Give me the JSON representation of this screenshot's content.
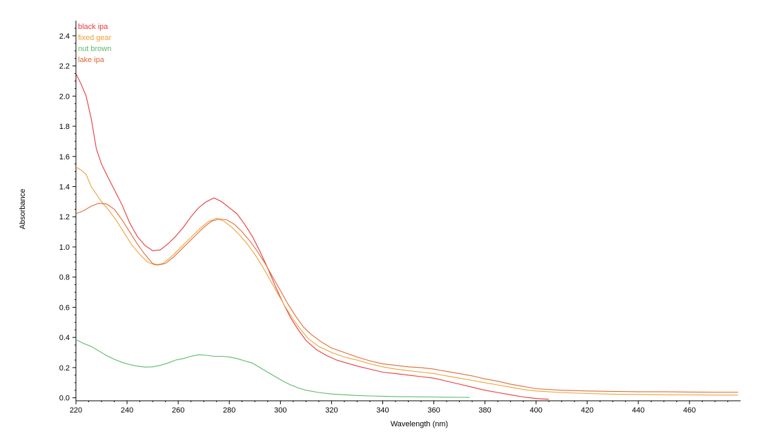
{
  "chart_data": {
    "type": "line",
    "title": "",
    "xlabel": "Wavelength (nm)",
    "ylabel": "Absorbance",
    "xlim": [
      220,
      480
    ],
    "ylim": [
      -0.02,
      2.5
    ],
    "x_ticks": [
      220,
      240,
      260,
      280,
      300,
      320,
      340,
      360,
      380,
      400,
      420,
      440,
      460
    ],
    "y_ticks": [
      0.0,
      0.2,
      0.4,
      0.6,
      0.8,
      1.0,
      1.2,
      1.4,
      1.6,
      1.8,
      2.0,
      2.2,
      2.4
    ],
    "x_tick_labels": [
      "220",
      "240",
      "260",
      "280",
      "300",
      "320",
      "340",
      "360",
      "380",
      "400",
      "420",
      "440",
      "460"
    ],
    "y_tick_labels": [
      "0.0",
      "0.2",
      "0.4",
      "0.6",
      "0.8",
      "1.0",
      "1.2",
      "1.4",
      "1.6",
      "1.8",
      "2.0",
      "2.2",
      "2.4"
    ],
    "grid": false,
    "legend_position": "top-left",
    "series": [
      {
        "name": "black ipa",
        "color": "#e8383a",
        "points": [
          [
            220,
            2.15
          ],
          [
            222,
            2.08
          ],
          [
            224,
            2.0
          ],
          [
            226,
            1.85
          ],
          [
            228,
            1.65
          ],
          [
            230,
            1.55
          ],
          [
            232,
            1.48
          ],
          [
            235,
            1.38
          ],
          [
            238,
            1.28
          ],
          [
            241,
            1.16
          ],
          [
            244,
            1.07
          ],
          [
            247,
            1.01
          ],
          [
            250,
            0.975
          ],
          [
            253,
            0.98
          ],
          [
            256,
            1.02
          ],
          [
            259,
            1.07
          ],
          [
            262,
            1.13
          ],
          [
            265,
            1.2
          ],
          [
            268,
            1.26
          ],
          [
            271,
            1.3
          ],
          [
            274,
            1.325
          ],
          [
            277,
            1.3
          ],
          [
            280,
            1.26
          ],
          [
            283,
            1.22
          ],
          [
            286,
            1.15
          ],
          [
            289,
            1.07
          ],
          [
            292,
            0.97
          ],
          [
            295,
            0.86
          ],
          [
            298,
            0.74
          ],
          [
            301,
            0.63
          ],
          [
            304,
            0.53
          ],
          [
            307,
            0.45
          ],
          [
            310,
            0.38
          ],
          [
            314,
            0.32
          ],
          [
            318,
            0.28
          ],
          [
            322,
            0.25
          ],
          [
            326,
            0.23
          ],
          [
            330,
            0.21
          ],
          [
            335,
            0.19
          ],
          [
            340,
            0.17
          ],
          [
            345,
            0.16
          ],
          [
            350,
            0.15
          ],
          [
            355,
            0.14
          ],
          [
            360,
            0.13
          ],
          [
            365,
            0.11
          ],
          [
            370,
            0.09
          ],
          [
            375,
            0.07
          ],
          [
            380,
            0.05
          ],
          [
            385,
            0.035
          ],
          [
            390,
            0.02
          ],
          [
            395,
            0.005
          ],
          [
            400,
            -0.005
          ],
          [
            405,
            -0.01
          ]
        ]
      },
      {
        "name": "fixed gear",
        "color": "#f0a035",
        "points": [
          [
            220,
            1.53
          ],
          [
            222,
            1.51
          ],
          [
            224,
            1.48
          ],
          [
            226,
            1.4
          ],
          [
            228,
            1.35
          ],
          [
            230,
            1.3
          ],
          [
            233,
            1.24
          ],
          [
            236,
            1.17
          ],
          [
            239,
            1.09
          ],
          [
            242,
            1.01
          ],
          [
            245,
            0.95
          ],
          [
            248,
            0.9
          ],
          [
            251,
            0.88
          ],
          [
            254,
            0.89
          ],
          [
            257,
            0.93
          ],
          [
            260,
            0.98
          ],
          [
            263,
            1.03
          ],
          [
            266,
            1.08
          ],
          [
            269,
            1.13
          ],
          [
            272,
            1.17
          ],
          [
            275,
            1.19
          ],
          [
            278,
            1.17
          ],
          [
            281,
            1.13
          ],
          [
            284,
            1.08
          ],
          [
            287,
            1.02
          ],
          [
            290,
            0.95
          ],
          [
            293,
            0.87
          ],
          [
            296,
            0.78
          ],
          [
            299,
            0.69
          ],
          [
            302,
            0.6
          ],
          [
            305,
            0.52
          ],
          [
            308,
            0.45
          ],
          [
            311,
            0.39
          ],
          [
            315,
            0.34
          ],
          [
            320,
            0.3
          ],
          [
            325,
            0.27
          ],
          [
            330,
            0.25
          ],
          [
            335,
            0.225
          ],
          [
            340,
            0.205
          ],
          [
            345,
            0.19
          ],
          [
            350,
            0.18
          ],
          [
            355,
            0.17
          ],
          [
            360,
            0.16
          ],
          [
            365,
            0.145
          ],
          [
            370,
            0.13
          ],
          [
            375,
            0.115
          ],
          [
            380,
            0.1
          ],
          [
            385,
            0.085
          ],
          [
            390,
            0.07
          ],
          [
            395,
            0.055
          ],
          [
            400,
            0.045
          ],
          [
            410,
            0.035
          ],
          [
            420,
            0.028
          ],
          [
            430,
            0.024
          ],
          [
            440,
            0.022
          ],
          [
            450,
            0.02
          ],
          [
            460,
            0.019
          ],
          [
            470,
            0.018
          ],
          [
            479,
            0.018
          ]
        ]
      },
      {
        "name": "nut brown",
        "color": "#5cb86a",
        "points": [
          [
            220,
            0.385
          ],
          [
            223,
            0.36
          ],
          [
            226,
            0.34
          ],
          [
            229,
            0.31
          ],
          [
            232,
            0.28
          ],
          [
            235,
            0.255
          ],
          [
            238,
            0.235
          ],
          [
            241,
            0.22
          ],
          [
            244,
            0.21
          ],
          [
            247,
            0.203
          ],
          [
            250,
            0.205
          ],
          [
            253,
            0.215
          ],
          [
            256,
            0.23
          ],
          [
            259,
            0.25
          ],
          [
            262,
            0.26
          ],
          [
            265,
            0.275
          ],
          [
            268,
            0.285
          ],
          [
            271,
            0.282
          ],
          [
            274,
            0.275
          ],
          [
            277,
            0.275
          ],
          [
            280,
            0.27
          ],
          [
            283,
            0.26
          ],
          [
            286,
            0.245
          ],
          [
            289,
            0.23
          ],
          [
            292,
            0.2
          ],
          [
            295,
            0.17
          ],
          [
            298,
            0.14
          ],
          [
            301,
            0.11
          ],
          [
            304,
            0.085
          ],
          [
            307,
            0.065
          ],
          [
            310,
            0.05
          ],
          [
            315,
            0.035
          ],
          [
            320,
            0.025
          ],
          [
            325,
            0.02
          ],
          [
            330,
            0.015
          ],
          [
            335,
            0.012
          ],
          [
            340,
            0.01
          ],
          [
            345,
            0.008
          ],
          [
            350,
            0.007
          ],
          [
            355,
            0.006
          ],
          [
            360,
            0.005
          ],
          [
            365,
            0.004
          ],
          [
            370,
            0.003
          ],
          [
            374,
            0.002
          ]
        ]
      },
      {
        "name": "lake ipa",
        "color": "#e06a35",
        "points": [
          [
            220,
            1.22
          ],
          [
            223,
            1.24
          ],
          [
            226,
            1.27
          ],
          [
            229,
            1.29
          ],
          [
            232,
            1.285
          ],
          [
            235,
            1.25
          ],
          [
            238,
            1.18
          ],
          [
            241,
            1.1
          ],
          [
            244,
            1.02
          ],
          [
            247,
            0.95
          ],
          [
            250,
            0.89
          ],
          [
            252,
            0.88
          ],
          [
            255,
            0.89
          ],
          [
            258,
            0.93
          ],
          [
            261,
            0.98
          ],
          [
            264,
            1.03
          ],
          [
            267,
            1.08
          ],
          [
            270,
            1.13
          ],
          [
            273,
            1.17
          ],
          [
            276,
            1.185
          ],
          [
            279,
            1.18
          ],
          [
            282,
            1.15
          ],
          [
            285,
            1.1
          ],
          [
            288,
            1.04
          ],
          [
            291,
            0.97
          ],
          [
            294,
            0.89
          ],
          [
            297,
            0.8
          ],
          [
            300,
            0.71
          ],
          [
            303,
            0.62
          ],
          [
            306,
            0.54
          ],
          [
            309,
            0.47
          ],
          [
            312,
            0.42
          ],
          [
            316,
            0.37
          ],
          [
            320,
            0.33
          ],
          [
            325,
            0.3
          ],
          [
            330,
            0.27
          ],
          [
            335,
            0.245
          ],
          [
            340,
            0.225
          ],
          [
            345,
            0.215
          ],
          [
            350,
            0.205
          ],
          [
            355,
            0.2
          ],
          [
            360,
            0.19
          ],
          [
            365,
            0.175
          ],
          [
            370,
            0.16
          ],
          [
            375,
            0.145
          ],
          [
            380,
            0.125
          ],
          [
            385,
            0.11
          ],
          [
            390,
            0.09
          ],
          [
            395,
            0.075
          ],
          [
            400,
            0.06
          ],
          [
            410,
            0.05
          ],
          [
            420,
            0.045
          ],
          [
            430,
            0.042
          ],
          [
            440,
            0.04
          ],
          [
            450,
            0.04
          ],
          [
            460,
            0.038
          ],
          [
            470,
            0.037
          ],
          [
            479,
            0.037
          ]
        ]
      }
    ]
  }
}
